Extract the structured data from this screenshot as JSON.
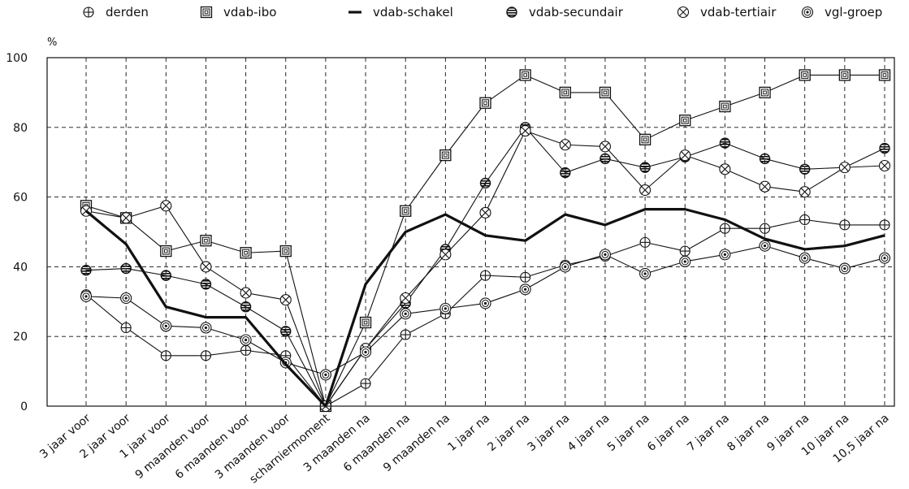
{
  "chart_data": {
    "type": "line",
    "ylabel": "%",
    "ylim": [
      0,
      100
    ],
    "yticks": [
      0,
      20,
      40,
      60,
      80,
      100
    ],
    "grid": "dashed",
    "legend_position": "top",
    "categories": [
      "3 jaar voor",
      "2 jaar voor",
      "1 jaar voor",
      "9 maanden voor",
      "6 maanden  voor",
      "3 maanden voor",
      "scharniermoment",
      "3 maanden na",
      "6 maanden na",
      "9 maanden na",
      "1 jaar na",
      "2 jaar na",
      "3 jaar na",
      "4 jaar na",
      "5 jaar na",
      "6 jaar na",
      "7 jaar na",
      "8 jaar na",
      "9 jaar na",
      "10 jaar na",
      "10,5 jaar na"
    ],
    "series": [
      {
        "name": "derden",
        "marker": "circle-plus-icon",
        "values": [
          32,
          22.5,
          14.5,
          14.5,
          16,
          14.5,
          0,
          6.5,
          20.5,
          26.5,
          37.5,
          37,
          40.5,
          43,
          47,
          44.5,
          51,
          51,
          53.5,
          52,
          52
        ]
      },
      {
        "name": "vdab-ibo",
        "marker": "square-in-square-icon",
        "values": [
          57.5,
          54,
          44.5,
          47.5,
          44,
          44.5,
          0,
          24,
          56,
          72,
          87,
          95,
          90,
          90,
          76.5,
          82,
          86,
          90,
          95,
          95,
          95
        ]
      },
      {
        "name": "vdab-schakel",
        "marker": "thick-line",
        "values": [
          56,
          46.5,
          28.5,
          25.5,
          25.5,
          12,
          0,
          35,
          50,
          55,
          49,
          47.5,
          55,
          52,
          56.5,
          56.5,
          53.5,
          48,
          45,
          46,
          49
        ]
      },
      {
        "name": "vdab-secundair",
        "marker": "striped-disc-icon",
        "values": [
          39,
          39.5,
          37.5,
          35,
          28.5,
          21.5,
          0,
          16.5,
          29.5,
          45,
          64,
          80,
          67,
          71,
          68.5,
          71.5,
          75.5,
          71,
          68,
          68.5,
          74
        ]
      },
      {
        "name": "vdab-tertiair",
        "marker": "circle-x-icon",
        "values": [
          56,
          54,
          57.5,
          40,
          32.5,
          30.5,
          0,
          16.5,
          31,
          43.5,
          55.5,
          79,
          75,
          74.5,
          62,
          72,
          68,
          63,
          61.5,
          68.5,
          69
        ]
      },
      {
        "name": "vgl-groep",
        "marker": "double-circle-icon",
        "values": [
          31.5,
          31,
          23,
          22.5,
          19,
          12.5,
          9,
          15.5,
          26.5,
          28,
          29.5,
          33.5,
          40,
          43.5,
          38,
          41.5,
          43.5,
          46,
          42.5,
          39.5,
          42.5
        ]
      }
    ]
  }
}
